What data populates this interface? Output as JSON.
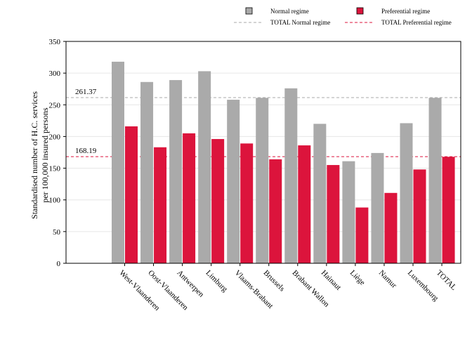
{
  "chart_data": {
    "type": "bar",
    "ylabel_lines": [
      "Standardised number of H.C. services",
      "per 100,000 insured persons"
    ],
    "xlabel": "",
    "ylim": [
      0,
      350
    ],
    "yticks": [
      0,
      50,
      100,
      150,
      200,
      250,
      300,
      350
    ],
    "grid": true,
    "legend_placement": "top",
    "categories": [
      "West-Vlaanderen",
      "Oost-Vlaanderen",
      "Antwerpen",
      "Limburg",
      "Vlaams-Brabant",
      "Brussels",
      "Brabant Wallon",
      "Hainaut",
      "Liège",
      "Namur",
      "Luxembourg",
      "TOTAL"
    ],
    "series": [
      {
        "name": "Normal regime",
        "color": "#aaaaaa",
        "values": [
          318,
          286,
          289,
          303,
          258,
          261,
          276,
          220,
          161,
          174,
          221,
          261
        ]
      },
      {
        "name": "Preferential regime",
        "color": "#dc143c",
        "values": [
          216,
          183,
          205,
          196,
          189,
          164,
          186,
          155,
          88,
          111,
          148,
          168
        ]
      }
    ],
    "reference_lines": [
      {
        "name": "TOTAL Normal regime",
        "value": 261.37,
        "label": "261.37",
        "color": "#aaaaaa"
      },
      {
        "name": "TOTAL Preferential regime",
        "value": 168.19,
        "label": "168.19",
        "color": "#dc143c"
      }
    ]
  }
}
